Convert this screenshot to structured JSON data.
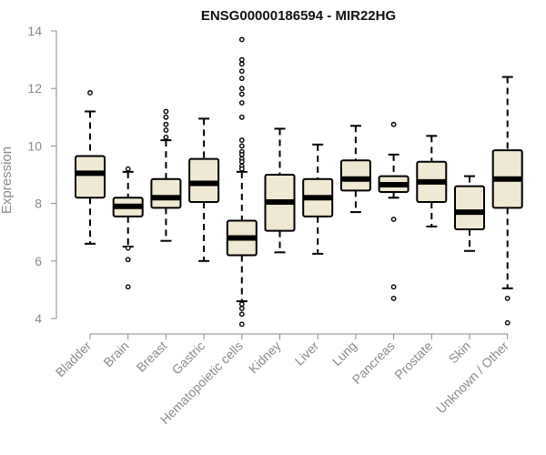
{
  "chart_data": {
    "type": "box",
    "title": "ENSG00000186594 - MIR22HG",
    "ylabel": "Expression",
    "xlabel": "",
    "ylim": [
      3.6,
      14.2
    ],
    "yticks": [
      4,
      6,
      8,
      10,
      12,
      14
    ],
    "grid": false,
    "box_fill": "#efe8d2",
    "box_stroke": "#000000",
    "categories": [
      "Bladder",
      "Brain",
      "Breast",
      "Gastric",
      "Hematopoietic cells",
      "Kidney",
      "Liver",
      "Lung",
      "Pancreas",
      "Prostate",
      "Skin",
      "Unknown / Other"
    ],
    "boxes": [
      {
        "category": "Bladder",
        "whisker_low": 6.6,
        "q1": 8.2,
        "median": 9.05,
        "q3": 9.65,
        "whisker_high": 11.2,
        "outliers": [
          11.85
        ]
      },
      {
        "category": "Brain",
        "whisker_low": 6.5,
        "q1": 7.55,
        "median": 7.9,
        "q3": 8.2,
        "whisker_high": 9.1,
        "outliers": [
          9.2,
          6.45,
          6.05,
          5.1
        ]
      },
      {
        "category": "Breast",
        "whisker_low": 6.7,
        "q1": 7.85,
        "median": 8.2,
        "q3": 8.85,
        "whisker_high": 10.2,
        "outliers": [
          11.2,
          11.0,
          10.75,
          10.55,
          10.3
        ]
      },
      {
        "category": "Gastric",
        "whisker_low": 6.0,
        "q1": 8.05,
        "median": 8.7,
        "q3": 9.55,
        "whisker_high": 10.95,
        "outliers": []
      },
      {
        "category": "Hematopoietic cells",
        "whisker_low": 4.6,
        "q1": 6.2,
        "median": 6.8,
        "q3": 7.4,
        "whisker_high": 9.1,
        "outliers": [
          13.7,
          13.0,
          12.85,
          12.6,
          12.35,
          12.0,
          11.8,
          11.5,
          11.0,
          10.2,
          10.0,
          9.8,
          9.7,
          9.55,
          9.45,
          9.3,
          9.2,
          4.5,
          4.35,
          4.15,
          3.8
        ]
      },
      {
        "category": "Kidney",
        "whisker_low": 6.3,
        "q1": 7.05,
        "median": 8.05,
        "q3": 9.0,
        "whisker_high": 10.6,
        "outliers": []
      },
      {
        "category": "Liver",
        "whisker_low": 6.25,
        "q1": 7.55,
        "median": 8.2,
        "q3": 8.85,
        "whisker_high": 10.05,
        "outliers": []
      },
      {
        "category": "Lung",
        "whisker_low": 7.7,
        "q1": 8.45,
        "median": 8.85,
        "q3": 9.5,
        "whisker_high": 10.7,
        "outliers": []
      },
      {
        "category": "Pancreas",
        "whisker_low": 8.2,
        "q1": 8.4,
        "median": 8.65,
        "q3": 8.95,
        "whisker_high": 9.7,
        "outliers": [
          10.75,
          7.45,
          5.1,
          4.7
        ]
      },
      {
        "category": "Prostate",
        "whisker_low": 7.2,
        "q1": 8.05,
        "median": 8.75,
        "q3": 9.45,
        "whisker_high": 10.35,
        "outliers": []
      },
      {
        "category": "Skin",
        "whisker_low": 6.35,
        "q1": 7.1,
        "median": 7.7,
        "q3": 8.6,
        "whisker_high": 8.95,
        "outliers": []
      },
      {
        "category": "Unknown / Other",
        "whisker_low": 5.05,
        "q1": 7.85,
        "median": 8.85,
        "q3": 9.85,
        "whisker_high": 12.4,
        "outliers": [
          4.7,
          3.85
        ]
      }
    ]
  }
}
